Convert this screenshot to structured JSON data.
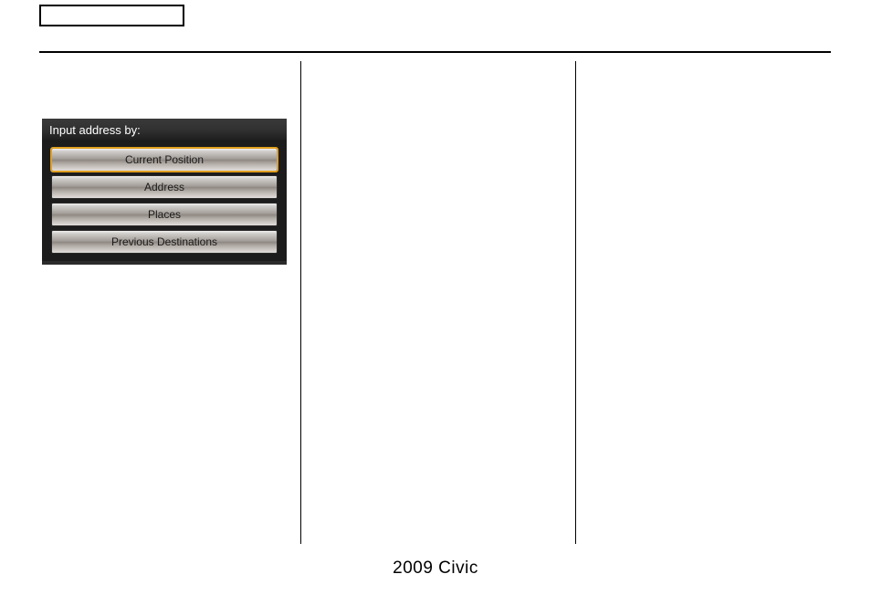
{
  "footer": {
    "text": "2009  Civic"
  },
  "nav_screen": {
    "title": "Input address by:",
    "buttons": [
      {
        "label": "Current Position",
        "selected": true
      },
      {
        "label": "Address",
        "selected": false
      },
      {
        "label": "Places",
        "selected": false
      },
      {
        "label": "Previous Destinations",
        "selected": false
      }
    ],
    "highlight_color": "#e0a020",
    "button_gradient_top": "#f0efee",
    "button_gradient_bottom": "#e2dedb",
    "background_color": "#1c1c1c",
    "title_text_color": "#ffffff"
  },
  "layout": {
    "top_box": {
      "border_color": "#000000",
      "bg": "#ffffff"
    },
    "hr_color": "#000000",
    "divider_color": "#000000",
    "page_bg": "#ffffff"
  }
}
